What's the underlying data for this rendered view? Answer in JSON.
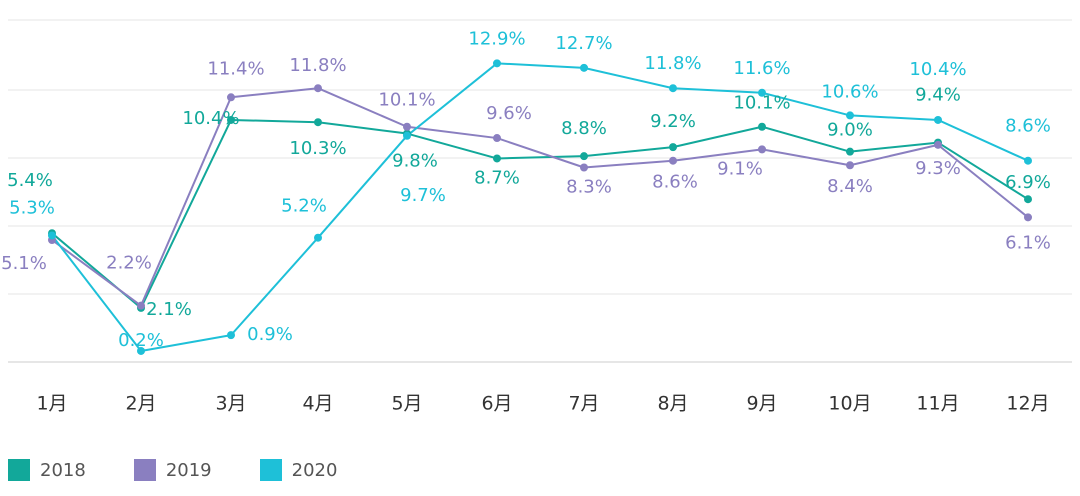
{
  "chart_data": {
    "type": "line",
    "categories": [
      "1月",
      "2月",
      "3月",
      "4月",
      "5月",
      "6月",
      "7月",
      "8月",
      "9月",
      "10月",
      "11月",
      "12月"
    ],
    "series": [
      {
        "name": "2018",
        "color": "#12a89a",
        "values": [
          5.4,
          2.1,
          10.4,
          10.3,
          9.8,
          8.7,
          8.8,
          9.2,
          10.1,
          9.0,
          9.4,
          6.9
        ]
      },
      {
        "name": "2019",
        "color": "#8a7fc0",
        "values": [
          5.1,
          2.2,
          11.4,
          11.8,
          10.1,
          9.6,
          8.3,
          8.6,
          9.1,
          8.4,
          9.3,
          6.1
        ]
      },
      {
        "name": "2020",
        "color": "#1ec0d8",
        "values": [
          5.3,
          0.2,
          0.9,
          5.2,
          9.7,
          12.9,
          12.7,
          11.8,
          11.6,
          10.6,
          10.4,
          8.6
        ]
      }
    ],
    "value_suffix": "%",
    "grid": true,
    "legend_position": "bottom-left"
  }
}
